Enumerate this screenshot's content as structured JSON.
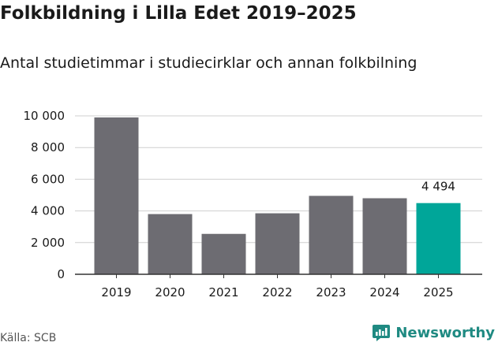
{
  "title": "Folkbildning i Lilla Edet 2019–2025",
  "subtitle": "Antal studietimmar i studiecirklar och annan folkbilning",
  "source": "Källa: SCB",
  "brand": {
    "name": "Newsworthy",
    "icon": "newsworthy-logo-icon",
    "color": "#1f8a82"
  },
  "colors": {
    "bar": "#6d6c72",
    "highlight": "#00a699",
    "grid": "#cfcfcf",
    "axis": "#333333"
  },
  "chart_data": {
    "type": "bar",
    "title": "Folkbildning i Lilla Edet 2019–2025",
    "subtitle": "Antal studietimmar i studiecirklar och annan folkbilning",
    "categories": [
      "2019",
      "2020",
      "2021",
      "2022",
      "2023",
      "2024",
      "2025"
    ],
    "values": [
      9900,
      3800,
      2550,
      3850,
      4950,
      4800,
      4494
    ],
    "highlight_index": 6,
    "data_labels": [
      {
        "index": 6,
        "text": "4 494"
      }
    ],
    "ylim": [
      0,
      10000
    ],
    "yticks": [
      0,
      2000,
      4000,
      6000,
      8000,
      10000
    ],
    "ytick_labels": [
      "0",
      "2 000",
      "4 000",
      "6 000",
      "8 000",
      "10 000"
    ],
    "xlabel": "",
    "ylabel": "",
    "grid": true
  }
}
